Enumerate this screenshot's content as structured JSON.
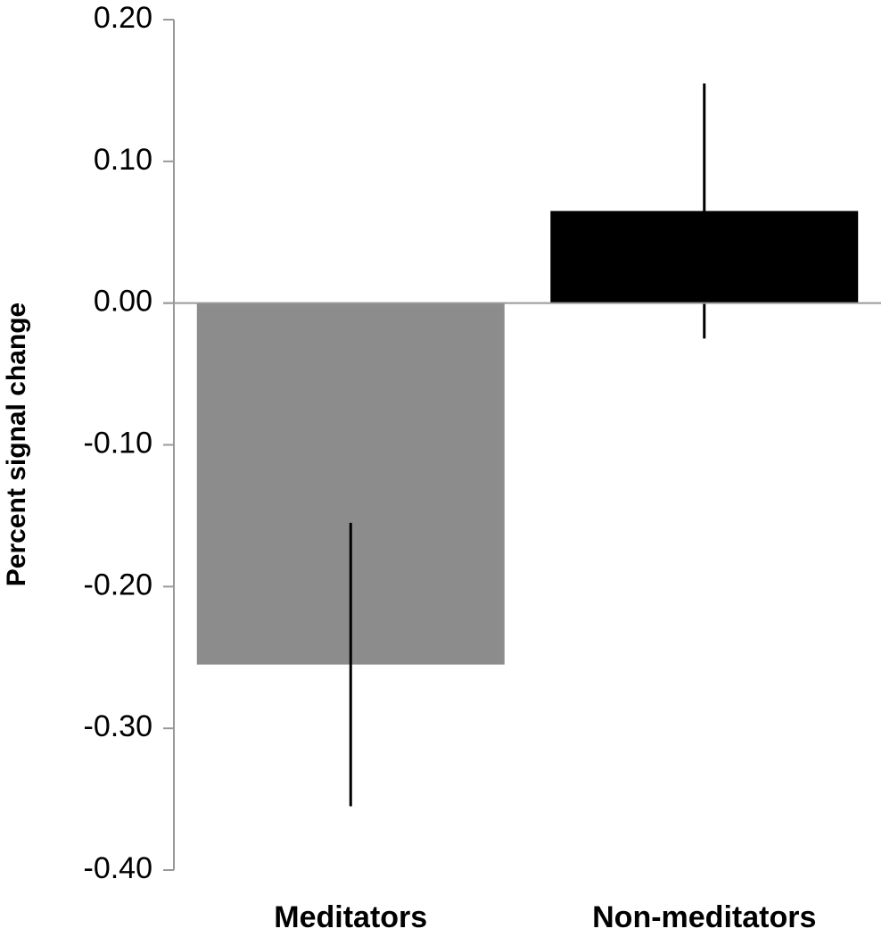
{
  "chart_data": {
    "type": "bar",
    "y_label": "Percent signal change",
    "categories": [
      "Meditators",
      "Non-meditators"
    ],
    "values": [
      -0.255,
      0.065
    ],
    "errors": [
      0.1,
      0.09
    ],
    "colors": [
      "#8c8c8c",
      "#000000"
    ],
    "ylim": [
      -0.4,
      0.2
    ],
    "yticks": [
      {
        "value": 0.2,
        "label": "0.20"
      },
      {
        "value": 0.1,
        "label": "0.10"
      },
      {
        "value": 0,
        "label": "0.00"
      },
      {
        "value": -0.1,
        "label": "-0.10"
      },
      {
        "value": -0.2,
        "label": "-0.20"
      },
      {
        "value": -0.3,
        "label": "-0.30"
      },
      {
        "value": -0.4,
        "label": "-0.40"
      }
    ],
    "grid": false
  }
}
